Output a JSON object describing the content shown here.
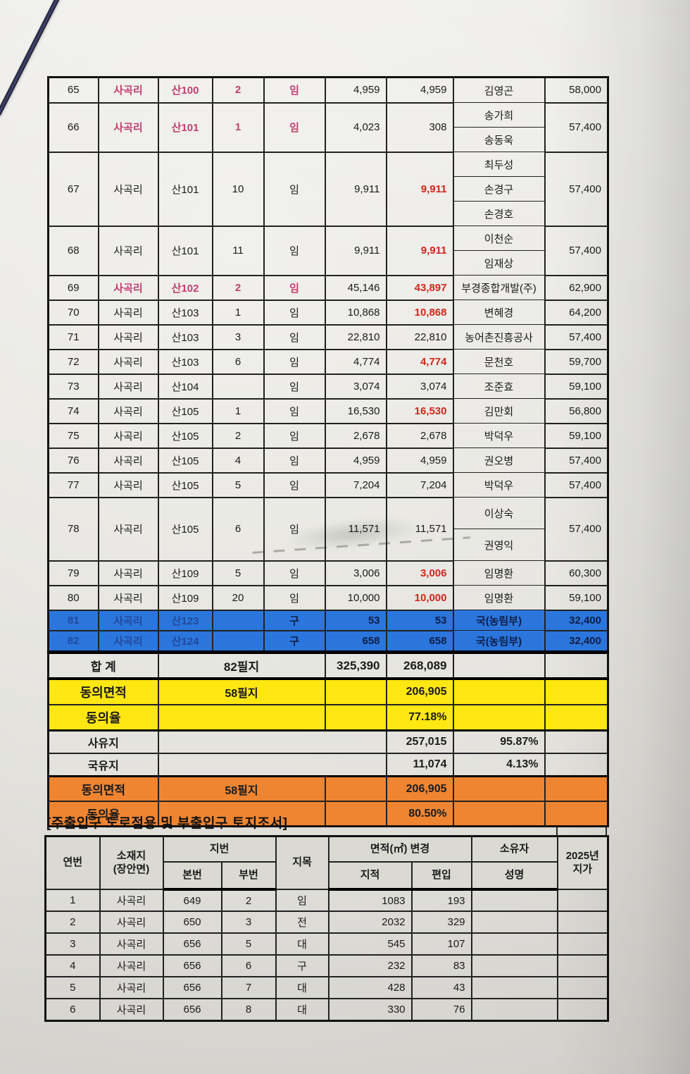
{
  "colors": {
    "blue_row": "#2b76dd",
    "yellow_row": "#ffe712",
    "orange_row": "#f08531",
    "red_text": "#d2261b",
    "pink_text": "#c23e72"
  },
  "land_table": {
    "rows": [
      {
        "no": "65",
        "ri": "사곡리",
        "bon": "산100",
        "bu": "2",
        "jimok": "임",
        "area": "4,959",
        "incl": "4,959",
        "incl_red": false,
        "owners": [
          "김영곤"
        ],
        "price": "58,000",
        "pink": true
      },
      {
        "no": "66",
        "ri": "사곡리",
        "bon": "산101",
        "bu": "1",
        "jimok": "임",
        "area": "4,023",
        "incl": "308",
        "incl_red": false,
        "owners": [
          "송가희",
          "송동욱"
        ],
        "price": "57,400",
        "pink": true
      },
      {
        "no": "67",
        "ri": "사곡리",
        "bon": "산101",
        "bu": "10",
        "jimok": "임",
        "area": "9,911",
        "incl": "9,911",
        "incl_red": true,
        "owners": [
          "최두성",
          "손경구",
          "손경호"
        ],
        "price": "57,400"
      },
      {
        "no": "68",
        "ri": "사곡리",
        "bon": "산101",
        "bu": "11",
        "jimok": "임",
        "area": "9,911",
        "incl": "9,911",
        "incl_red": true,
        "owners": [
          "이천순",
          "임재상"
        ],
        "price": "57,400"
      },
      {
        "no": "69",
        "ri": "사곡리",
        "bon": "산102",
        "bu": "2",
        "jimok": "임",
        "area": "45,146",
        "incl": "43,897",
        "incl_red": true,
        "owners": [
          "부경종합개발(주)"
        ],
        "price": "62,900",
        "pink": true
      },
      {
        "no": "70",
        "ri": "사곡리",
        "bon": "산103",
        "bu": "1",
        "jimok": "임",
        "area": "10,868",
        "incl": "10,868",
        "incl_red": true,
        "owners": [
          "변혜경"
        ],
        "price": "64,200"
      },
      {
        "no": "71",
        "ri": "사곡리",
        "bon": "산103",
        "bu": "3",
        "jimok": "임",
        "area": "22,810",
        "incl": "22,810",
        "incl_red": false,
        "owners": [
          "농어촌진흥공사"
        ],
        "price": "57,400"
      },
      {
        "no": "72",
        "ri": "사곡리",
        "bon": "산103",
        "bu": "6",
        "jimok": "임",
        "area": "4,774",
        "incl": "4,774",
        "incl_red": true,
        "owners": [
          "문천호"
        ],
        "price": "59,700"
      },
      {
        "no": "73",
        "ri": "사곡리",
        "bon": "산104",
        "bu": "",
        "jimok": "임",
        "area": "3,074",
        "incl": "3,074",
        "incl_red": false,
        "owners": [
          "조준효"
        ],
        "price": "59,100"
      },
      {
        "no": "74",
        "ri": "사곡리",
        "bon": "산105",
        "bu": "1",
        "jimok": "임",
        "area": "16,530",
        "incl": "16,530",
        "incl_red": true,
        "owners": [
          "김만회"
        ],
        "price": "56,800"
      },
      {
        "no": "75",
        "ri": "사곡리",
        "bon": "산105",
        "bu": "2",
        "jimok": "임",
        "area": "2,678",
        "incl": "2,678",
        "incl_red": false,
        "owners": [
          "박덕우"
        ],
        "price": "59,100"
      },
      {
        "no": "76",
        "ri": "사곡리",
        "bon": "산105",
        "bu": "4",
        "jimok": "임",
        "area": "4,959",
        "incl": "4,959",
        "incl_red": false,
        "owners": [
          "권오병"
        ],
        "price": "57,400"
      },
      {
        "no": "77",
        "ri": "사곡리",
        "bon": "산105",
        "bu": "5",
        "jimok": "임",
        "area": "7,204",
        "incl": "7,204",
        "incl_red": false,
        "owners": [
          "박덕우"
        ],
        "price": "57,400"
      },
      {
        "no": "78",
        "ri": "사곡리",
        "bon": "산105",
        "bu": "6",
        "jimok": "임",
        "area": "11,571",
        "incl": "11,571",
        "incl_red": false,
        "owners": [
          "이상숙",
          "권영익"
        ],
        "price": "57,400",
        "tall": true
      },
      {
        "no": "79",
        "ri": "사곡리",
        "bon": "산109",
        "bu": "5",
        "jimok": "임",
        "area": "3,006",
        "incl": "3,006",
        "incl_red": true,
        "owners": [
          "임명환"
        ],
        "price": "60,300"
      },
      {
        "no": "80",
        "ri": "사곡리",
        "bon": "산109",
        "bu": "20",
        "jimok": "임",
        "area": "10,000",
        "incl": "10,000",
        "incl_red": true,
        "owners": [
          "임명환"
        ],
        "price": "59,100"
      },
      {
        "no": "81",
        "ri": "사곡리",
        "bon": "산123",
        "bu": "",
        "jimok": "구",
        "area": "53",
        "incl": "53",
        "incl_red": false,
        "owners": [
          "국(농림부)"
        ],
        "price": "32,400",
        "bg": "blue",
        "faint": true
      },
      {
        "no": "82",
        "ri": "사곡리",
        "bon": "산124",
        "bu": "",
        "jimok": "구",
        "area": "658",
        "incl": "658",
        "incl_red": false,
        "owners": [
          "국(농림부)"
        ],
        "price": "32,400",
        "bg": "blue",
        "faint": true
      }
    ],
    "summary_rows": [
      {
        "label": "합 계",
        "parcels": "82필지",
        "area": "325,390",
        "incl": "268,089",
        "rate": "",
        "style": "total",
        "merged": false
      },
      {
        "label": "동의면적",
        "parcels": "58필지",
        "area": "",
        "incl": "206,905",
        "rate": "",
        "style": "yellow",
        "merged": false
      },
      {
        "label": "동의율",
        "parcels": "",
        "area": "",
        "incl": "77.18%",
        "rate": "",
        "style": "yellow",
        "merged": false
      },
      {
        "label": "사유지",
        "parcels": "",
        "area": "",
        "incl": "257,015",
        "rate": "95.87%",
        "style": "plain",
        "merged": true
      },
      {
        "label": "국유지",
        "parcels": "",
        "area": "",
        "incl": "11,074",
        "rate": "4.13%",
        "style": "plain",
        "merged": true
      },
      {
        "label": "동의면적",
        "parcels": "58필지",
        "area": "",
        "incl": "206,905",
        "rate": "",
        "style": "orange",
        "merged": false
      },
      {
        "label": "동의율",
        "parcels": "",
        "area": "",
        "incl": "80.50%",
        "rate": "",
        "style": "orange",
        "merged": false
      }
    ]
  },
  "access_table": {
    "title": "[주출입구 도로점용 및 부출입구 토지조서]",
    "header": {
      "no": "연번",
      "location": "소재지 (장안면)",
      "location_line1": "소재지",
      "location_line2": "(장안면)",
      "jibun_group": "지번",
      "bonbun": "본번",
      "bubun": "부번",
      "jimok": "지목",
      "area_group": "면적(㎡) 변경",
      "jijeok": "지적",
      "pyeonip": "편입",
      "owner_group": "소유자",
      "name": "성명",
      "price_line1": "2025년",
      "price_line2": "지가"
    },
    "rows": [
      [
        "1",
        "사곡리",
        "649",
        "2",
        "임",
        "1083",
        "193",
        "",
        ""
      ],
      [
        "2",
        "사곡리",
        "650",
        "3",
        "전",
        "2032",
        "329",
        "",
        ""
      ],
      [
        "3",
        "사곡리",
        "656",
        "5",
        "대",
        "545",
        "107",
        "",
        ""
      ],
      [
        "4",
        "사곡리",
        "656",
        "6",
        "구",
        "232",
        "83",
        "",
        ""
      ],
      [
        "5",
        "사곡리",
        "656",
        "7",
        "대",
        "428",
        "43",
        "",
        ""
      ],
      [
        "6",
        "사곡리",
        "656",
        "8",
        "대",
        "330",
        "76",
        "",
        ""
      ]
    ]
  }
}
